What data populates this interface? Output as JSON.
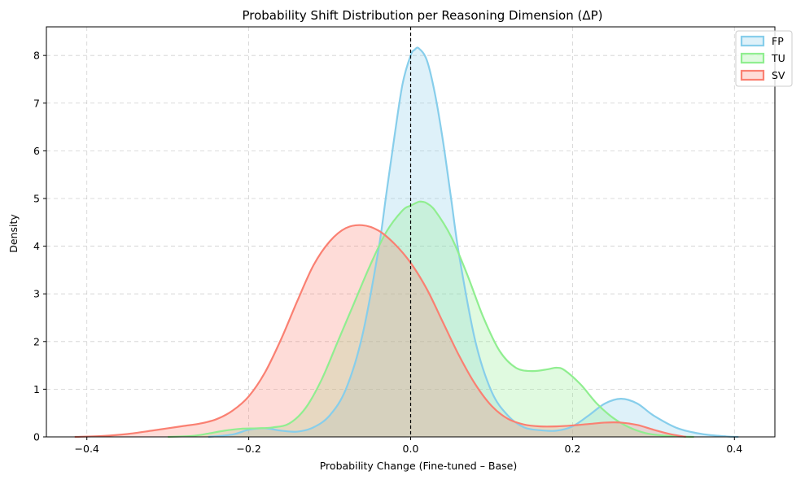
{
  "chart_data": {
    "type": "area",
    "title": "Probability Shift Distribution per Reasoning Dimension (ΔP)",
    "xlabel": "Probability Change (Fine-tuned – Base)",
    "ylabel": "Density",
    "xlim": [
      -0.45,
      0.45
    ],
    "ylim": [
      0,
      8.6
    ],
    "x_ticks": [
      -0.4,
      -0.2,
      0.0,
      0.2,
      0.4
    ],
    "x_tick_labels": [
      "−0.4",
      "−0.2",
      "0.0",
      "0.2",
      "0.4"
    ],
    "y_ticks": [
      0,
      1,
      2,
      3,
      4,
      5,
      6,
      7,
      8
    ],
    "y_tick_labels": [
      "0",
      "1",
      "2",
      "3",
      "4",
      "5",
      "6",
      "7",
      "8"
    ],
    "grid": true,
    "legend_position": "top-right",
    "reference_line_x": 0.0,
    "series": [
      {
        "name": "FP",
        "color": "#87ceeb",
        "fill_color": "#87ceeb",
        "x": [
          -0.25,
          -0.22,
          -0.2,
          -0.18,
          -0.16,
          -0.14,
          -0.12,
          -0.1,
          -0.08,
          -0.06,
          -0.04,
          -0.03,
          -0.02,
          -0.01,
          0.0,
          0.005,
          0.01,
          0.02,
          0.03,
          0.04,
          0.05,
          0.06,
          0.08,
          0.1,
          0.12,
          0.14,
          0.16,
          0.18,
          0.2,
          0.22,
          0.24,
          0.26,
          0.28,
          0.3,
          0.33,
          0.36,
          0.39,
          0.405
        ],
        "y": [
          0.0,
          0.05,
          0.15,
          0.18,
          0.13,
          0.11,
          0.2,
          0.45,
          1.0,
          2.1,
          3.9,
          5.1,
          6.3,
          7.4,
          8.0,
          8.12,
          8.15,
          7.9,
          7.2,
          6.2,
          5.0,
          3.8,
          2.0,
          0.95,
          0.45,
          0.2,
          0.14,
          0.13,
          0.22,
          0.45,
          0.7,
          0.8,
          0.7,
          0.45,
          0.18,
          0.06,
          0.01,
          0.0
        ]
      },
      {
        "name": "TU",
        "color": "#90ee90",
        "fill_color": "#90ee90",
        "x": [
          -0.3,
          -0.27,
          -0.25,
          -0.23,
          -0.21,
          -0.19,
          -0.17,
          -0.15,
          -0.13,
          -0.11,
          -0.09,
          -0.07,
          -0.05,
          -0.03,
          -0.01,
          0.0,
          0.01,
          0.015,
          0.02,
          0.03,
          0.05,
          0.07,
          0.09,
          0.11,
          0.13,
          0.15,
          0.17,
          0.18,
          0.19,
          0.21,
          0.23,
          0.25,
          0.27,
          0.29,
          0.31,
          0.33,
          0.35
        ],
        "y": [
          0.0,
          0.02,
          0.07,
          0.13,
          0.17,
          0.18,
          0.2,
          0.28,
          0.6,
          1.2,
          2.0,
          2.8,
          3.6,
          4.3,
          4.75,
          4.85,
          4.93,
          4.93,
          4.9,
          4.75,
          4.2,
          3.4,
          2.5,
          1.8,
          1.45,
          1.38,
          1.42,
          1.45,
          1.4,
          1.1,
          0.7,
          0.4,
          0.2,
          0.08,
          0.03,
          0.01,
          0.0
        ]
      },
      {
        "name": "SV",
        "color": "#fa8072",
        "fill_color": "#fa8072",
        "x": [
          -0.415,
          -0.38,
          -0.35,
          -0.32,
          -0.3,
          -0.28,
          -0.26,
          -0.24,
          -0.22,
          -0.2,
          -0.18,
          -0.16,
          -0.14,
          -0.12,
          -0.1,
          -0.08,
          -0.06,
          -0.04,
          -0.02,
          0.0,
          0.02,
          0.04,
          0.06,
          0.08,
          0.1,
          0.12,
          0.14,
          0.16,
          0.18,
          0.2,
          0.22,
          0.24,
          0.26,
          0.28,
          0.3,
          0.32,
          0.34
        ],
        "y": [
          0.0,
          0.02,
          0.06,
          0.13,
          0.18,
          0.23,
          0.28,
          0.37,
          0.55,
          0.85,
          1.35,
          2.05,
          2.85,
          3.6,
          4.1,
          4.38,
          4.44,
          4.33,
          4.05,
          3.65,
          3.1,
          2.4,
          1.7,
          1.1,
          0.65,
          0.38,
          0.26,
          0.22,
          0.22,
          0.24,
          0.27,
          0.3,
          0.3,
          0.25,
          0.15,
          0.06,
          0.0
        ]
      }
    ]
  }
}
